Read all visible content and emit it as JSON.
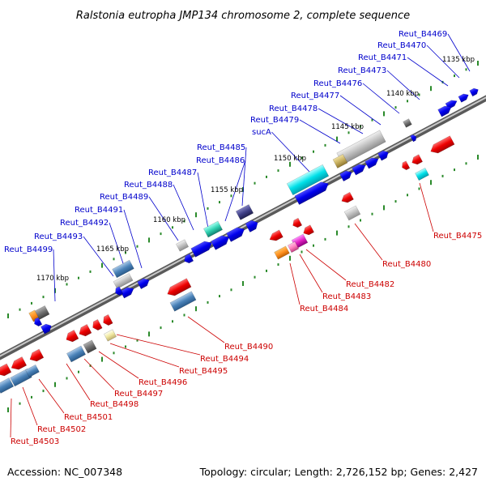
{
  "title": "Ralstonia eutropha JMP134 chromosome 2, complete sequence",
  "footer": {
    "accession": "Accession: NC_007348",
    "summary": "Topology: circular; Length: 2,726,152 bp; Genes: 2,427"
  },
  "colors": {
    "forward_label": "#0000cc",
    "reverse_label": "#cc0000",
    "backbone": "#808080",
    "tick": "#2a8a2a"
  },
  "scale_labels": [
    "1135 kbp",
    "1140 kbp",
    "1145 kbp",
    "1150 kbp",
    "1155 kbp",
    "1160 kbp",
    "1165 kbp",
    "1170 kbp"
  ],
  "forward_genes": [
    "Reut_B4469",
    "Reut_B4470",
    "Reut_B4471",
    "Reut_B4473",
    "Reut_B4476",
    "Reut_B4477",
    "Reut_B4478",
    "Reut_B4479",
    "sucA",
    "Reut_B4485",
    "Reut_B4486",
    "Reut_B4487",
    "Reut_B4488",
    "Reut_B4489",
    "Reut_B4491",
    "Reut_B4492",
    "Reut_B4493",
    "Reut_B4499"
  ],
  "reverse_genes": [
    "Reut_B4475",
    "Reut_B4480",
    "Reut_B4482",
    "Reut_B4483",
    "Reut_B4484",
    "Reut_B4490",
    "Reut_B4494",
    "Reut_B4495",
    "Reut_B4496",
    "Reut_B4497",
    "Reut_B4498",
    "Reut_B4501",
    "Reut_B4502",
    "Reut_B4503"
  ]
}
